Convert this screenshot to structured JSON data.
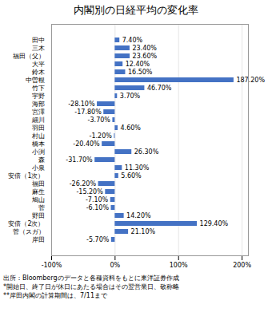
{
  "chart_data": {
    "type": "bar",
    "orientation": "horizontal",
    "title": "内閣別の日経平均の変化率",
    "categories": [
      "田中",
      "三木",
      "福田（父）",
      "大平",
      "鈴木",
      "中曽根",
      "竹下",
      "宇野",
      "海部",
      "宮澤",
      "細川",
      "羽田",
      "村山",
      "橋本",
      "小渕",
      "森",
      "小泉",
      "安倍（1次）",
      "福田",
      "麻生",
      "鳩山",
      "菅",
      "野田",
      "安倍（2次）",
      "菅（スガ）",
      "岸田"
    ],
    "values": [
      7.4,
      23.4,
      23.6,
      12.4,
      16.5,
      187.2,
      46.7,
      3.7,
      -28.1,
      -17.8,
      -3.7,
      4.6,
      -1.2,
      -20.4,
      26.3,
      -31.7,
      11.3,
      5.6,
      -26.2,
      -15.2,
      -7.1,
      -6.1,
      14.2,
      129.4,
      21.1,
      -5.7
    ],
    "value_labels": [
      "7.40%",
      "23.40%",
      "23.60%",
      "12.40%",
      "16.50%",
      "187.20%",
      "46.70%",
      "3.70%",
      "-28.10%",
      "-17.80%",
      "-3.70%",
      "4.60%",
      "-1.20%",
      "-20.40%",
      "26.30%",
      "-31.70%",
      "11.30%",
      "5.60%",
      "-26.20%",
      "-15.20%",
      "-7.10%",
      "-6.10%",
      "14.20%",
      "129.40%",
      "21.10%",
      "-5.70%"
    ],
    "data_labels": true,
    "color": "#4472c4",
    "xlim": [
      -100,
      210
    ],
    "xticks": [
      {
        "value": -100,
        "label": "-100%"
      },
      {
        "value": 0,
        "label": "0%"
      },
      {
        "value": 100,
        "label": "100%"
      },
      {
        "value": 200,
        "label": "200%"
      }
    ],
    "grid": true,
    "annotations": [
      "出所：Bloombergのデータと各種資料をもとに東洋証券作成",
      "*開始日、終了日が休日にあたる場合はその翌営業日、敬称略",
      "**岸田内閣の計算期間は、7/11まで"
    ]
  }
}
